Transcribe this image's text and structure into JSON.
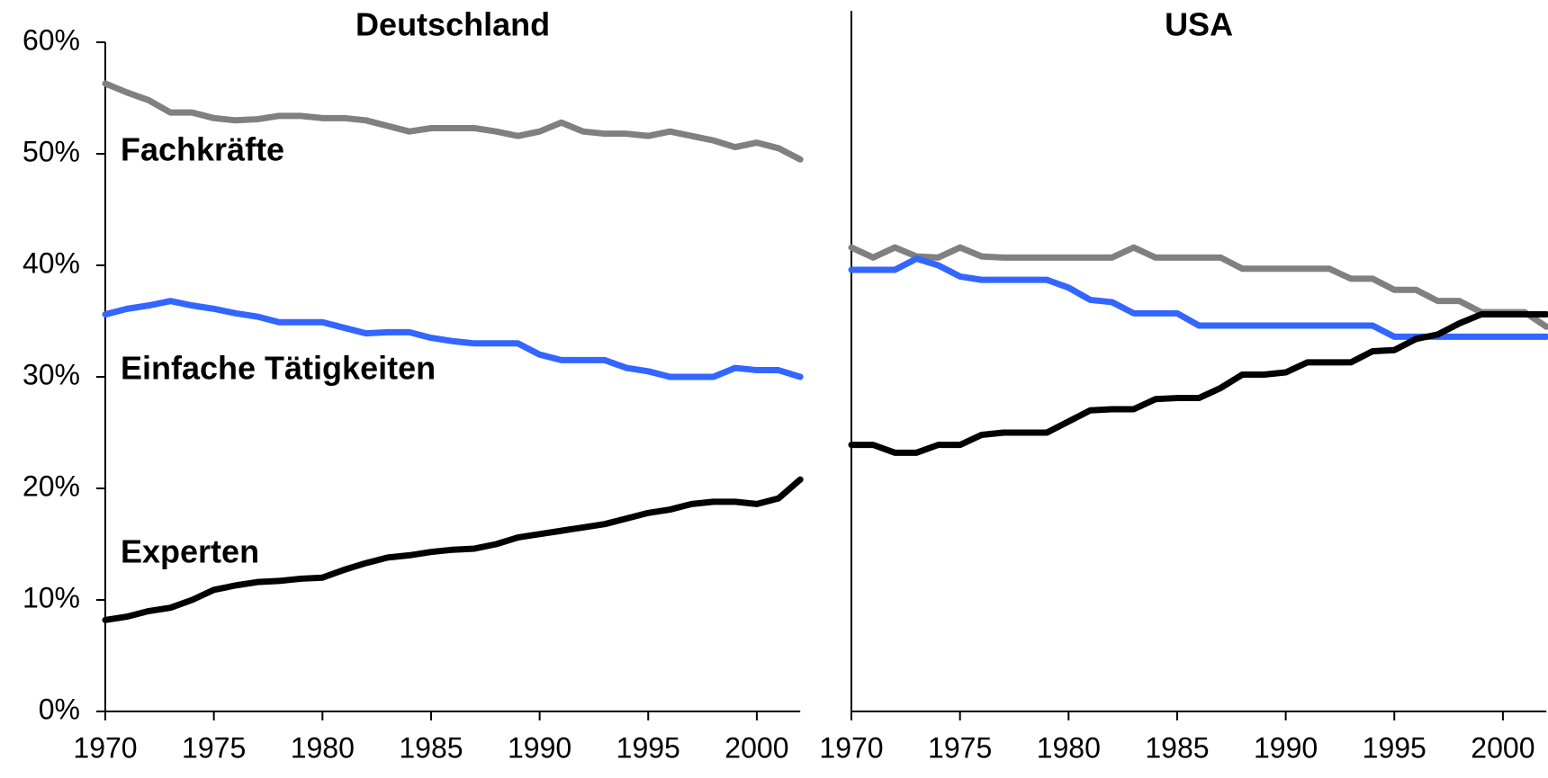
{
  "chart_data": [
    {
      "type": "line",
      "title": "Deutschland",
      "x": [
        1970,
        1971,
        1972,
        1973,
        1974,
        1975,
        1976,
        1977,
        1978,
        1979,
        1980,
        1981,
        1982,
        1983,
        1984,
        1985,
        1986,
        1987,
        1988,
        1989,
        1990,
        1991,
        1992,
        1993,
        1994,
        1995,
        1996,
        1997,
        1998,
        1999,
        2000,
        2001,
        2002
      ],
      "series": [
        {
          "name": "Fachkräfte",
          "color": "#808080",
          "values": [
            56.3,
            55.5,
            54.8,
            53.7,
            53.7,
            53.2,
            53.0,
            53.1,
            53.4,
            53.4,
            53.2,
            53.2,
            53.0,
            52.5,
            52.0,
            52.3,
            52.3,
            52.3,
            52.0,
            51.6,
            52.0,
            52.8,
            52.0,
            51.8,
            51.8,
            51.6,
            52.0,
            51.6,
            51.2,
            50.6,
            51.0,
            50.5,
            49.5
          ]
        },
        {
          "name": "Einfache Tätigkeiten",
          "color": "#3366ff",
          "values": [
            35.6,
            36.1,
            36.4,
            36.8,
            36.4,
            36.1,
            35.7,
            35.4,
            34.9,
            34.9,
            34.9,
            34.4,
            33.9,
            34.0,
            34.0,
            33.5,
            33.2,
            33.0,
            33.0,
            33.0,
            32.0,
            31.5,
            31.5,
            31.5,
            30.8,
            30.5,
            30.0,
            30.0,
            30.0,
            30.8,
            30.6,
            30.6,
            30.0
          ]
        },
        {
          "name": "Experten",
          "color": "#000000",
          "values": [
            8.2,
            8.5,
            9.0,
            9.3,
            10.0,
            10.9,
            11.3,
            11.6,
            11.7,
            11.9,
            12.0,
            12.7,
            13.3,
            13.8,
            14.0,
            14.3,
            14.5,
            14.6,
            15.0,
            15.6,
            15.9,
            16.2,
            16.5,
            16.8,
            17.3,
            17.8,
            18.1,
            18.6,
            18.8,
            18.8,
            18.6,
            19.1,
            20.8
          ]
        }
      ],
      "xlim": [
        1970,
        2002
      ],
      "xticks": [
        1970,
        1975,
        1980,
        1985,
        1990,
        1995,
        2000
      ],
      "ylim": [
        0,
        60
      ],
      "yticks": [
        {
          "value": 0,
          "label": "0%"
        },
        {
          "value": 10,
          "label": "10%"
        },
        {
          "value": 20,
          "label": "20%"
        },
        {
          "value": 30,
          "label": "30%"
        },
        {
          "value": 40,
          "label": "40%"
        },
        {
          "value": 50,
          "label": "50%"
        },
        {
          "value": 60,
          "label": "60%"
        }
      ]
    },
    {
      "type": "line",
      "title": "USA",
      "x": [
        1970,
        1971,
        1972,
        1973,
        1974,
        1975,
        1976,
        1977,
        1978,
        1979,
        1980,
        1981,
        1982,
        1983,
        1984,
        1985,
        1986,
        1987,
        1988,
        1989,
        1990,
        1991,
        1992,
        1993,
        1994,
        1995,
        1996,
        1997,
        1998,
        1999,
        2000,
        2001,
        2002
      ],
      "series": [
        {
          "color": "#808080",
          "values": [
            41.6,
            40.7,
            41.6,
            40.8,
            40.7,
            41.6,
            40.8,
            40.7,
            40.7,
            40.7,
            40.7,
            40.7,
            40.7,
            41.6,
            40.7,
            40.7,
            40.7,
            40.7,
            39.7,
            39.7,
            39.7,
            39.7,
            39.7,
            38.8,
            38.8,
            37.8,
            37.8,
            36.8,
            36.8,
            35.8,
            35.8,
            35.8,
            34.5
          ]
        },
        {
          "color": "#3366ff",
          "values": [
            39.6,
            39.6,
            39.6,
            40.6,
            40.0,
            39.0,
            38.7,
            38.7,
            38.7,
            38.7,
            38.0,
            36.9,
            36.7,
            35.7,
            35.7,
            35.7,
            34.6,
            34.6,
            34.6,
            34.6,
            34.6,
            34.6,
            34.6,
            34.6,
            34.6,
            33.6,
            33.6,
            33.6,
            33.6,
            33.6,
            33.6,
            33.6,
            33.6
          ]
        },
        {
          "color": "#000000",
          "values": [
            23.9,
            23.9,
            23.2,
            23.2,
            23.9,
            23.9,
            24.8,
            25.0,
            25.0,
            25.0,
            26.0,
            27.0,
            27.1,
            27.1,
            28.0,
            28.1,
            28.1,
            29.0,
            30.2,
            30.2,
            30.4,
            31.3,
            31.3,
            31.3,
            32.3,
            32.4,
            33.4,
            33.8,
            34.8,
            35.6,
            35.6,
            35.6,
            35.6
          ]
        }
      ],
      "xlim": [
        1970,
        2002
      ],
      "xticks": [
        1970,
        1975,
        1980,
        1985,
        1990,
        1995,
        2000
      ],
      "ylim": [
        0,
        60
      ]
    }
  ]
}
